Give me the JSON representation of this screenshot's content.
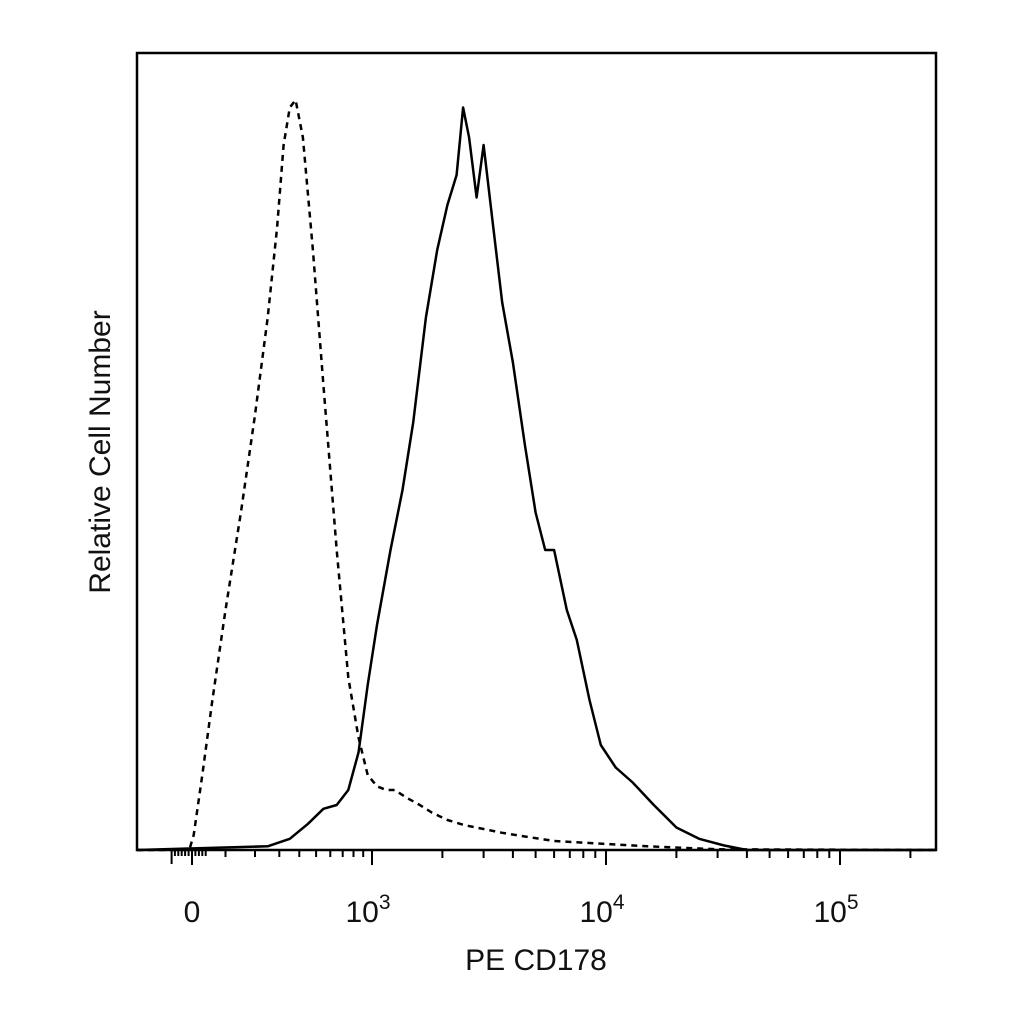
{
  "chart_data": {
    "type": "line",
    "title": "",
    "xlabel": "PE CD178",
    "ylabel": "Relative Cell Number",
    "x_scale": "biexponential",
    "xlim": [
      -60,
      250000
    ],
    "ylim": [
      0,
      100
    ],
    "grid": false,
    "legend": "none",
    "x_ticks": [
      {
        "value": 0,
        "label": "0"
      },
      {
        "value": 1000,
        "base": "10",
        "exp": "3"
      },
      {
        "value": 10000,
        "base": "10",
        "exp": "4"
      },
      {
        "value": 100000,
        "base": "10",
        "exp": "5"
      }
    ],
    "series": [
      {
        "style": "dashed",
        "color": "#000000",
        "x": [
          -8,
          5,
          30,
          60,
          100,
          150,
          200,
          250,
          290,
          320,
          350,
          380,
          420,
          480,
          550,
          650,
          750,
          850,
          950,
          1050,
          1150,
          1250,
          1400,
          1600,
          1800,
          2100,
          2500,
          3000,
          3600,
          4500,
          6000,
          9000,
          15000,
          30000
        ],
        "y": [
          0,
          2,
          10,
          20,
          32,
          45,
          58,
          71,
          83,
          94,
          99,
          100,
          95,
          80,
          62,
          40,
          23,
          15,
          10,
          8.5,
          8,
          8,
          7,
          6,
          5,
          4,
          3.3,
          2.8,
          2.3,
          1.8,
          1.2,
          0.9,
          0.5,
          0.1
        ]
      },
      {
        "style": "solid",
        "color": "#000000",
        "x": [
          250,
          350,
          450,
          550,
          650,
          750,
          850,
          950,
          1050,
          1200,
          1350,
          1500,
          1700,
          1900,
          2100,
          2300,
          2450,
          2600,
          2800,
          3000,
          3300,
          3600,
          4000,
          4500,
          5000,
          5500,
          6000,
          6800,
          7500,
          8500,
          9500,
          11000,
          13000,
          16000,
          20000,
          25000,
          32000,
          40000
        ],
        "y": [
          0.5,
          1.5,
          3.5,
          5.5,
          6,
          8,
          13,
          22,
          30,
          40,
          48,
          57,
          71,
          80,
          86,
          90,
          99,
          95,
          87,
          94,
          83,
          73,
          65,
          54,
          45,
          40,
          40,
          32,
          28,
          20,
          14,
          11,
          9,
          6,
          3,
          1.5,
          0.6,
          0
        ]
      }
    ]
  }
}
